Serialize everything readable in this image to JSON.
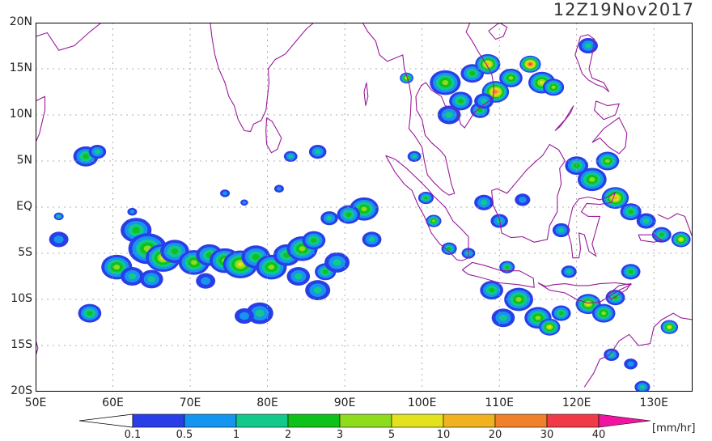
{
  "title": "12Z19Nov2017",
  "lat_labels": [
    "20N",
    "15N",
    "10N",
    "5N",
    "EQ",
    "5S",
    "10S",
    "15S",
    "20S"
  ],
  "lon_labels": [
    "50E",
    "60E",
    "70E",
    "80E",
    "90E",
    "100E",
    "110E",
    "120E",
    "130E"
  ],
  "colorbar": {
    "units": "[mm/hr]",
    "ticks": [
      "0.1",
      "0.5",
      "1",
      "2",
      "3",
      "5",
      "10",
      "20",
      "30",
      "40"
    ],
    "colors": [
      "#2a3ee8",
      "#1496f0",
      "#12c88a",
      "#0ec21a",
      "#8edc1e",
      "#e2e21e",
      "#f0b21e",
      "#f0802a",
      "#f03a48",
      "#f014a0"
    ]
  },
  "map": {
    "lon_range": [
      50,
      135
    ],
    "lat_range": [
      -20,
      20
    ],
    "coastline_color": "#9a1a9a",
    "grid": true,
    "rain_cells": [
      {
        "lon": 63.0,
        "lat": -2.5,
        "r": 1.6,
        "level": 3
      },
      {
        "lon": 64.5,
        "lat": -4.5,
        "r": 2.0,
        "level": 4
      },
      {
        "lon": 66.5,
        "lat": -5.5,
        "r": 1.8,
        "level": 5
      },
      {
        "lon": 68.0,
        "lat": -4.8,
        "r": 1.5,
        "level": 3
      },
      {
        "lon": 60.5,
        "lat": -6.5,
        "r": 1.6,
        "level": 4
      },
      {
        "lon": 62.5,
        "lat": -7.5,
        "r": 1.2,
        "level": 2
      },
      {
        "lon": 70.5,
        "lat": -6.0,
        "r": 1.6,
        "level": 4
      },
      {
        "lon": 72.5,
        "lat": -5.2,
        "r": 1.4,
        "level": 3
      },
      {
        "lon": 74.5,
        "lat": -5.8,
        "r": 1.6,
        "level": 4
      },
      {
        "lon": 76.5,
        "lat": -6.2,
        "r": 1.8,
        "level": 5
      },
      {
        "lon": 78.5,
        "lat": -5.4,
        "r": 1.5,
        "level": 3
      },
      {
        "lon": 80.5,
        "lat": -6.5,
        "r": 1.6,
        "level": 4
      },
      {
        "lon": 82.5,
        "lat": -5.2,
        "r": 1.4,
        "level": 3
      },
      {
        "lon": 84.5,
        "lat": -4.5,
        "r": 1.6,
        "level": 4
      },
      {
        "lon": 86.0,
        "lat": -3.6,
        "r": 1.2,
        "level": 3
      },
      {
        "lon": 84.0,
        "lat": -7.5,
        "r": 1.2,
        "level": 2
      },
      {
        "lon": 86.5,
        "lat": -9.0,
        "r": 1.3,
        "level": 2
      },
      {
        "lon": 87.5,
        "lat": -7.0,
        "r": 1.1,
        "level": 3
      },
      {
        "lon": 89.0,
        "lat": -6.0,
        "r": 1.3,
        "level": 2
      },
      {
        "lon": 65.0,
        "lat": -7.8,
        "r": 1.2,
        "level": 2
      },
      {
        "lon": 72.0,
        "lat": -8.0,
        "r": 1.0,
        "level": 1
      },
      {
        "lon": 57.0,
        "lat": -11.5,
        "r": 1.2,
        "level": 3
      },
      {
        "lon": 56.5,
        "lat": 5.5,
        "r": 1.3,
        "level": 3
      },
      {
        "lon": 58.0,
        "lat": 6.0,
        "r": 0.9,
        "level": 2
      },
      {
        "lon": 53.0,
        "lat": -3.5,
        "r": 1.0,
        "level": 1
      },
      {
        "lon": 79.0,
        "lat": -11.5,
        "r": 1.4,
        "level": 2
      },
      {
        "lon": 77.0,
        "lat": -11.8,
        "r": 1.0,
        "level": 1
      },
      {
        "lon": 92.5,
        "lat": -0.2,
        "r": 1.5,
        "level": 4
      },
      {
        "lon": 90.5,
        "lat": -0.8,
        "r": 1.2,
        "level": 3
      },
      {
        "lon": 88.0,
        "lat": -1.2,
        "r": 0.9,
        "level": 2
      },
      {
        "lon": 93.5,
        "lat": -3.5,
        "r": 1.0,
        "level": 2
      },
      {
        "lon": 86.5,
        "lat": 6.0,
        "r": 0.9,
        "level": 2
      },
      {
        "lon": 103.0,
        "lat": 13.5,
        "r": 1.6,
        "level": 4
      },
      {
        "lon": 105.0,
        "lat": 11.5,
        "r": 1.2,
        "level": 3
      },
      {
        "lon": 103.5,
        "lat": 10.0,
        "r": 1.2,
        "level": 2
      },
      {
        "lon": 106.5,
        "lat": 14.5,
        "r": 1.2,
        "level": 3
      },
      {
        "lon": 108.5,
        "lat": 15.5,
        "r": 1.3,
        "level": 6
      },
      {
        "lon": 109.5,
        "lat": 12.5,
        "r": 1.4,
        "level": 7
      },
      {
        "lon": 111.5,
        "lat": 14.0,
        "r": 1.2,
        "level": 4
      },
      {
        "lon": 114.0,
        "lat": 15.5,
        "r": 1.1,
        "level": 8
      },
      {
        "lon": 115.5,
        "lat": 13.5,
        "r": 1.4,
        "level": 5
      },
      {
        "lon": 117.0,
        "lat": 13.0,
        "r": 1.1,
        "level": 4
      },
      {
        "lon": 107.5,
        "lat": 10.5,
        "r": 1.0,
        "level": 3
      },
      {
        "lon": 108.0,
        "lat": 11.5,
        "r": 1.0,
        "level": 2
      },
      {
        "lon": 121.5,
        "lat": 17.5,
        "r": 1.0,
        "level": 2
      },
      {
        "lon": 98.0,
        "lat": 14.0,
        "r": 0.7,
        "level": 5
      },
      {
        "lon": 120.0,
        "lat": 4.5,
        "r": 1.2,
        "level": 3
      },
      {
        "lon": 122.0,
        "lat": 3.0,
        "r": 1.5,
        "level": 4
      },
      {
        "lon": 124.0,
        "lat": 5.0,
        "r": 1.2,
        "level": 4
      },
      {
        "lon": 125.0,
        "lat": 1.0,
        "r": 1.4,
        "level": 6
      },
      {
        "lon": 127.0,
        "lat": -0.5,
        "r": 1.1,
        "level": 3
      },
      {
        "lon": 129.0,
        "lat": -1.5,
        "r": 1.0,
        "level": 2
      },
      {
        "lon": 131.0,
        "lat": -3.0,
        "r": 1.0,
        "level": 3
      },
      {
        "lon": 133.5,
        "lat": -3.5,
        "r": 1.0,
        "level": 5
      },
      {
        "lon": 108.0,
        "lat": 0.5,
        "r": 1.0,
        "level": 2
      },
      {
        "lon": 110.0,
        "lat": -1.5,
        "r": 0.9,
        "level": 2
      },
      {
        "lon": 113.0,
        "lat": 0.8,
        "r": 0.8,
        "level": 1
      },
      {
        "lon": 118.0,
        "lat": -2.5,
        "r": 0.9,
        "level": 2
      },
      {
        "lon": 112.5,
        "lat": -10.0,
        "r": 1.5,
        "level": 4
      },
      {
        "lon": 109.0,
        "lat": -9.0,
        "r": 1.2,
        "level": 3
      },
      {
        "lon": 110.5,
        "lat": -12.0,
        "r": 1.2,
        "level": 2
      },
      {
        "lon": 115.0,
        "lat": -12.0,
        "r": 1.4,
        "level": 4
      },
      {
        "lon": 116.5,
        "lat": -13.0,
        "r": 1.1,
        "level": 5
      },
      {
        "lon": 118.0,
        "lat": -11.5,
        "r": 1.0,
        "level": 3
      },
      {
        "lon": 121.5,
        "lat": -10.5,
        "r": 1.3,
        "level": 5
      },
      {
        "lon": 123.5,
        "lat": -11.5,
        "r": 1.2,
        "level": 4
      },
      {
        "lon": 125.0,
        "lat": -9.8,
        "r": 1.0,
        "level": 3
      },
      {
        "lon": 119.0,
        "lat": -7.0,
        "r": 0.8,
        "level": 2
      },
      {
        "lon": 111.0,
        "lat": -6.5,
        "r": 0.8,
        "level": 3
      },
      {
        "lon": 103.5,
        "lat": -4.5,
        "r": 0.8,
        "level": 3
      },
      {
        "lon": 106.0,
        "lat": -5.0,
        "r": 0.7,
        "level": 2
      },
      {
        "lon": 127.0,
        "lat": -7.0,
        "r": 1.0,
        "level": 3
      },
      {
        "lon": 132.0,
        "lat": -13.0,
        "r": 0.9,
        "level": 5
      },
      {
        "lon": 124.5,
        "lat": -16.0,
        "r": 0.8,
        "level": 2
      },
      {
        "lon": 127.0,
        "lat": -17.0,
        "r": 0.7,
        "level": 1
      },
      {
        "lon": 128.5,
        "lat": -19.5,
        "r": 0.8,
        "level": 2
      },
      {
        "lon": 100.5,
        "lat": 1.0,
        "r": 0.8,
        "level": 3
      },
      {
        "lon": 99.0,
        "lat": 5.5,
        "r": 0.7,
        "level": 2
      },
      {
        "lon": 101.5,
        "lat": -1.5,
        "r": 0.8,
        "level": 4
      },
      {
        "lon": 83.0,
        "lat": 5.5,
        "r": 0.7,
        "level": 2
      },
      {
        "lon": 81.5,
        "lat": 2.0,
        "r": 0.5,
        "level": 1
      },
      {
        "lon": 74.5,
        "lat": 1.5,
        "r": 0.5,
        "level": 1
      },
      {
        "lon": 77.0,
        "lat": 0.5,
        "r": 0.4,
        "level": 1
      },
      {
        "lon": 62.5,
        "lat": -0.5,
        "r": 0.5,
        "level": 1
      },
      {
        "lon": 53.0,
        "lat": -1.0,
        "r": 0.5,
        "level": 2
      }
    ]
  }
}
